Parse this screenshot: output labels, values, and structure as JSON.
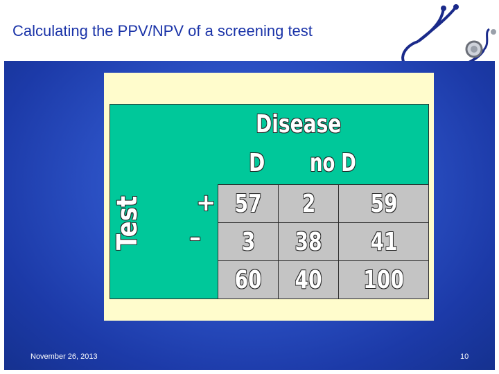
{
  "slide": {
    "title": "Calculating the PPV/NPV of a screening test",
    "date": "November 26, 2013",
    "page_number": "10"
  },
  "table": {
    "header": "Disease",
    "col_labels": [
      "D",
      "no D"
    ],
    "row_header": "Test",
    "row_labels": [
      "+",
      "–"
    ],
    "rows": [
      [
        "57",
        "2",
        "59"
      ],
      [
        "3",
        "38",
        "41"
      ],
      [
        "60",
        "40",
        "100"
      ]
    ]
  },
  "colors": {
    "title": "#1a33a8",
    "background": "#2a4fc2",
    "table": "#00c89a",
    "cells": "#c4c4c4",
    "picture": "#fffccc"
  },
  "icons": [
    "stethoscope-icon"
  ]
}
